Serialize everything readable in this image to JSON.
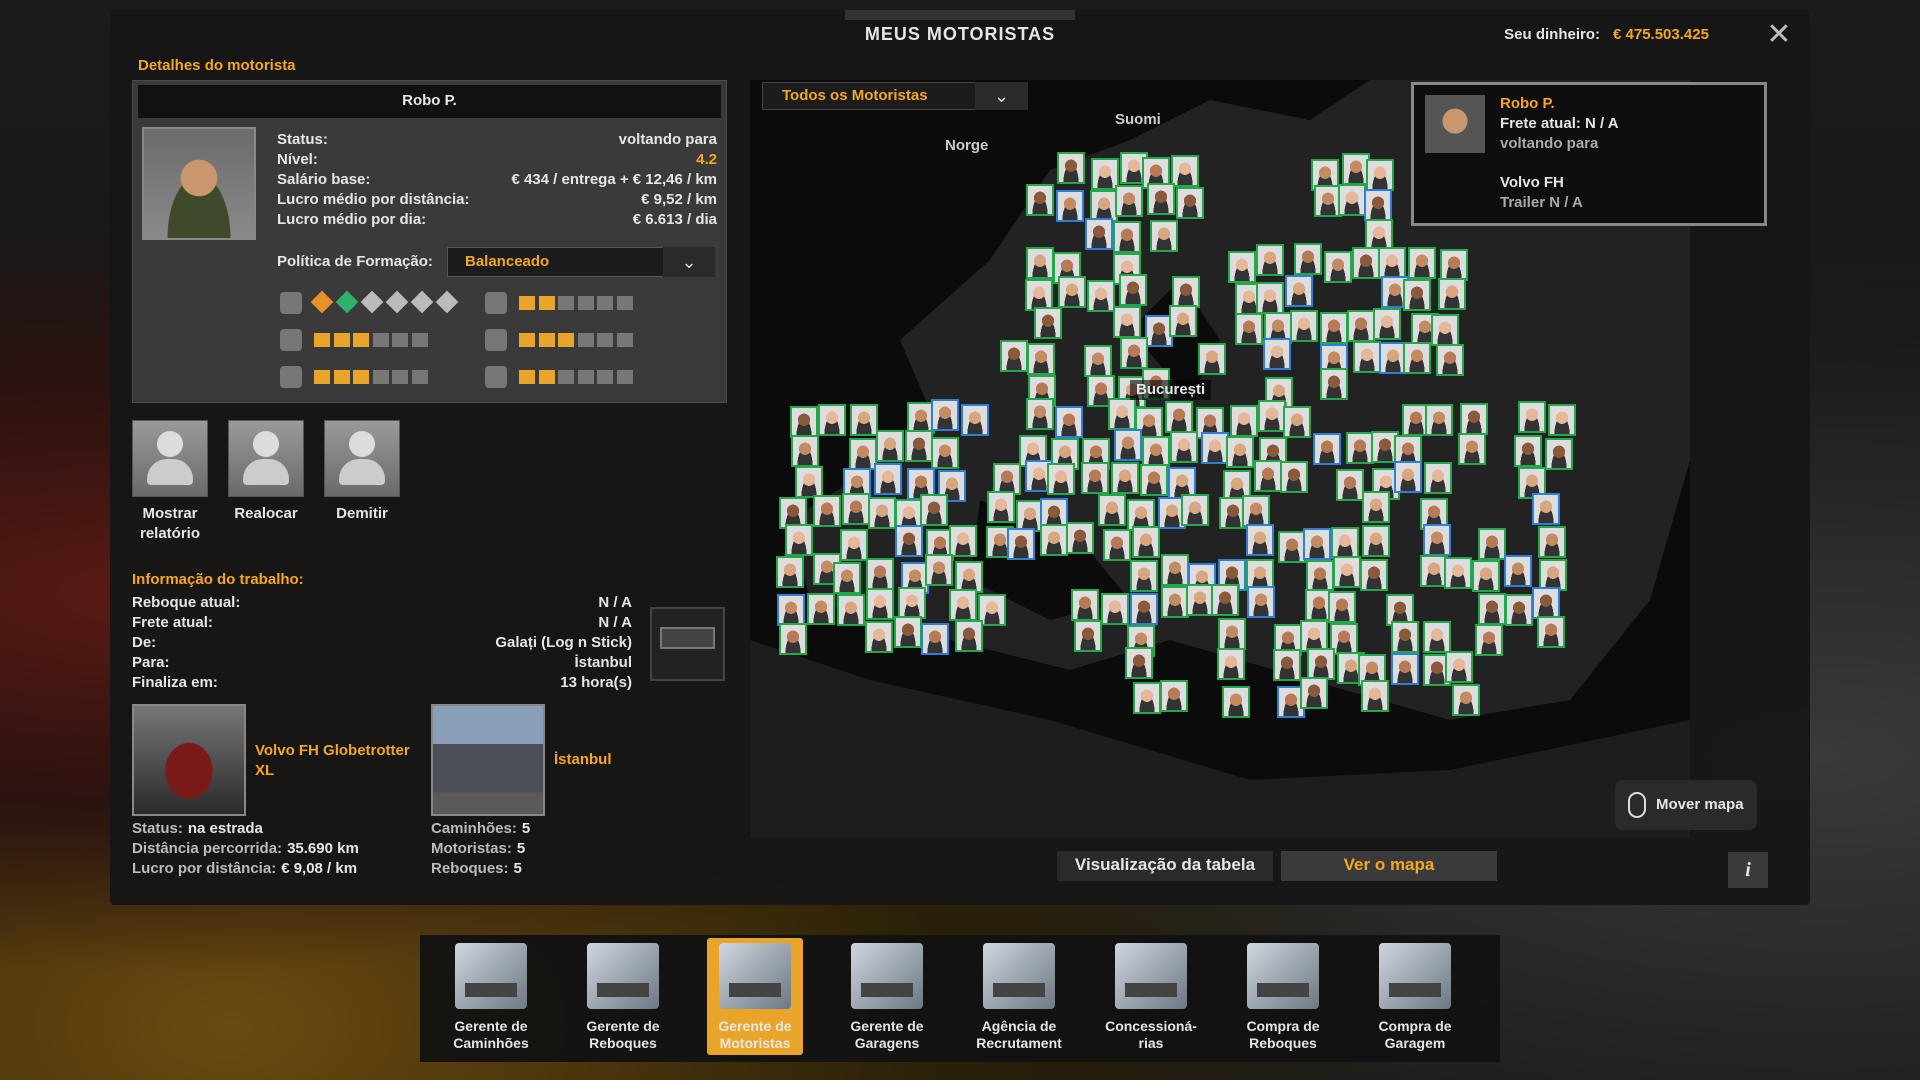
{
  "header": {
    "title": "MEUS MOTORISTAS",
    "money_label": "Seu dinheiro:",
    "money": "€ 475.503.425"
  },
  "driver": {
    "section": "Detalhes do motorista",
    "name": "Robo P.",
    "stats": [
      [
        "Status:",
        "voltando para"
      ],
      [
        "Nível:",
        "4.2"
      ],
      [
        "Salário base:",
        "€ 434 / entrega + € 12,46 / km"
      ],
      [
        "Lucro médio por distância:",
        "€ 9,52 / km"
      ],
      [
        "Lucro médio por dia:",
        "€ 6.613 / dia"
      ]
    ],
    "policy_label": "Política de Formação:",
    "policy": "Balanceado",
    "skills": [
      2,
      3,
      3,
      2,
      3,
      2
    ]
  },
  "actions": [
    [
      "Mostrar",
      "relatório"
    ],
    [
      "Realocar"
    ],
    [
      "Demitir"
    ]
  ],
  "job": {
    "title": "Informação do trabalho:",
    "rows": [
      [
        "Reboque atual:",
        "N / A"
      ],
      [
        "Frete atual:",
        "N / A"
      ],
      [
        "De:",
        "Galați (Log n Stick)"
      ],
      [
        "Para:",
        "İstanbul"
      ],
      [
        "Finaliza em:",
        "13 hora(s)"
      ]
    ]
  },
  "truck": {
    "name": "Volvo FH Globetrotter XL",
    "rows": [
      [
        "Status:",
        "na estrada"
      ],
      [
        "Distância percorrida:",
        "35.690 km"
      ],
      [
        "Lucro por distância:",
        "€ 9,08 / km"
      ]
    ]
  },
  "garage": {
    "name": "İstanbul",
    "rows": [
      [
        "Caminhões:",
        "5"
      ],
      [
        "Motoristas:",
        "5"
      ],
      [
        "Reboques:",
        "5"
      ]
    ]
  },
  "map": {
    "filter": "Todos os Motoristas",
    "labels": [
      "Suomi",
      "Norge",
      "București"
    ]
  },
  "info_card": {
    "name": "Robo P.",
    "cargo": "Frete atual: N / A",
    "status": "voltando para",
    "truck": "Volvo FH",
    "trailer": "Trailer N / A"
  },
  "map_buttons": {
    "move": "Mover mapa",
    "table": "Visualização da tabela",
    "map": "Ver o mapa",
    "info": "i"
  },
  "toolbar": [
    {
      "label": [
        "Gerente de",
        "Caminhões"
      ]
    },
    {
      "label": [
        "Gerente de",
        "Reboques"
      ]
    },
    {
      "label": [
        "Gerente de",
        "Motoristas"
      ],
      "selected": true
    },
    {
      "label": [
        "Gerente de",
        "Garagens"
      ]
    },
    {
      "label": [
        "Agência de",
        "Recrutament"
      ]
    },
    {
      "label": [
        "Concessioná-",
        "rias"
      ]
    },
    {
      "label": [
        "Compra de",
        "Reboques"
      ]
    },
    {
      "label": [
        "Compra de",
        "Garagem"
      ]
    }
  ]
}
